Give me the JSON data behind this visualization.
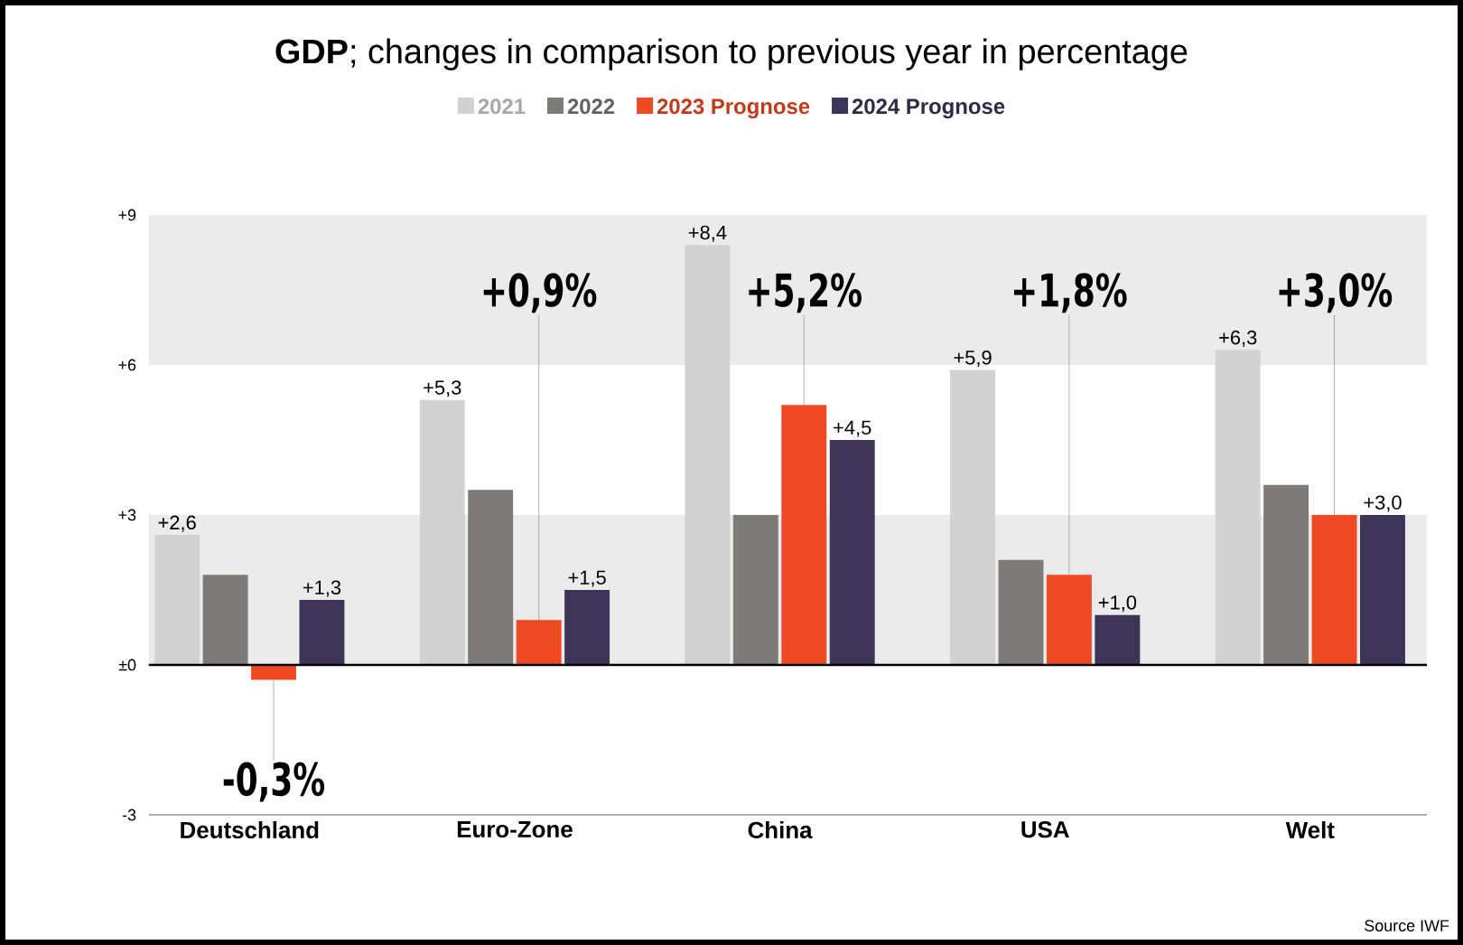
{
  "chart_data": {
    "type": "bar",
    "title": "**GDP**; changes in comparison to previous year in percentage",
    "categories": [
      "Deutschland",
      "Euro-Zone",
      "China",
      "USA",
      "Welt"
    ],
    "series": [
      {
        "name": "2021",
        "color": "#d2d2d2",
        "values": [
          2.6,
          5.3,
          8.4,
          5.9,
          6.3
        ],
        "value_labels": [
          "+2,6",
          "+5,3",
          "+8,4",
          "+5,9",
          "+6,3"
        ]
      },
      {
        "name": "2022",
        "color": "#7d7b78",
        "values": [
          1.8,
          3.5,
          3.0,
          2.1,
          3.6
        ]
      },
      {
        "name": "2023 Prognose",
        "color": "#f04a24",
        "values": [
          -0.3,
          0.9,
          5.2,
          1.8,
          3.0
        ],
        "value_labels": [
          "-0,3%",
          "+0,9%",
          "+5,2%",
          "+1,8%",
          "+3,0%"
        ]
      },
      {
        "name": "2024 Prognose",
        "color": "#3d3558",
        "values": [
          1.3,
          1.5,
          4.5,
          1.0,
          3.0
        ],
        "value_labels": [
          "+1,3",
          "+1,5",
          "+4,5",
          "+1,0",
          "+3,0"
        ]
      }
    ],
    "ylim": [
      -3,
      9
    ],
    "yticks": [
      {
        "value": 9,
        "label": "+9"
      },
      {
        "value": 6,
        "label": "+6"
      },
      {
        "value": 3,
        "label": "+3"
      },
      {
        "value": 0,
        "label": "±0"
      },
      -3
    ],
    "bands": [
      {
        "axis": "y",
        "from": 6,
        "to": 9,
        "color": "#ebebeb"
      },
      {
        "axis": "y",
        "from": 0,
        "to": 3,
        "color": "#ebebeb"
      }
    ],
    "legend": "top",
    "annotations": [
      "Source IWF"
    ]
  }
}
